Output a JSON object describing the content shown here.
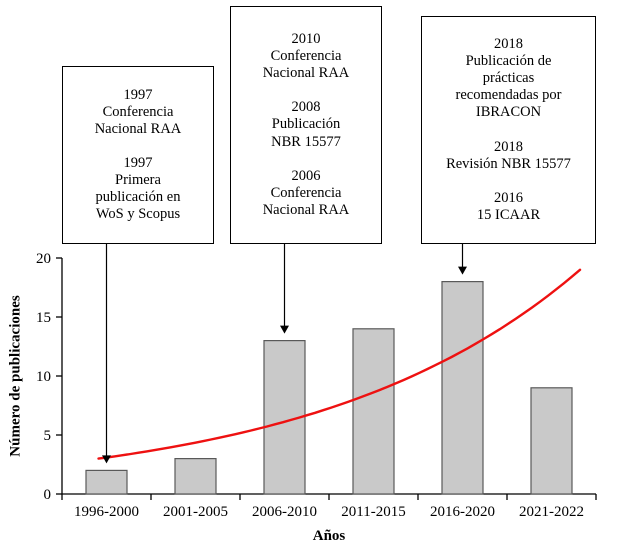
{
  "chart_data": {
    "type": "bar",
    "categories": [
      "1996-2000",
      "2001-2005",
      "2006-2010",
      "2011-2015",
      "2016-2020",
      "2021-2022"
    ],
    "values": [
      2,
      3,
      13,
      14,
      18,
      9
    ],
    "title": "",
    "xlabel": "Años",
    "ylabel": "Número de publicaciones",
    "ylim": [
      0,
      20
    ],
    "yticks": [
      0,
      5,
      10,
      15,
      20
    ],
    "grid": false,
    "legend": "none",
    "bar_color": "#c9c9c9",
    "bar_border_color": "#595959",
    "axis_color": "#000000",
    "trend": {
      "type": "exponential",
      "color": "#ee1111",
      "start_value": 3,
      "end_value": 19
    },
    "annotations": [
      {
        "lines": [
          "1997",
          "Conferencia",
          "Nacional RAA",
          "",
          "1997",
          "Primera",
          "publicación en",
          "WoS y Scopus"
        ],
        "target_category": "1996-2000"
      },
      {
        "lines": [
          "2010",
          "Conferencia",
          "Nacional RAA",
          "",
          "2008",
          "Publicación",
          "NBR 15577",
          "",
          "2006",
          "Conferencia",
          "Nacional RAA"
        ],
        "target_category": "2006-2010"
      },
      {
        "lines": [
          "2018",
          "Publicación de",
          "prácticas",
          "recomendadas por",
          "IBRACON",
          "",
          "2018",
          "Revisión NBR 15577",
          "",
          "2016",
          "15 ICAAR"
        ],
        "target_category": "2016-2020"
      }
    ]
  }
}
